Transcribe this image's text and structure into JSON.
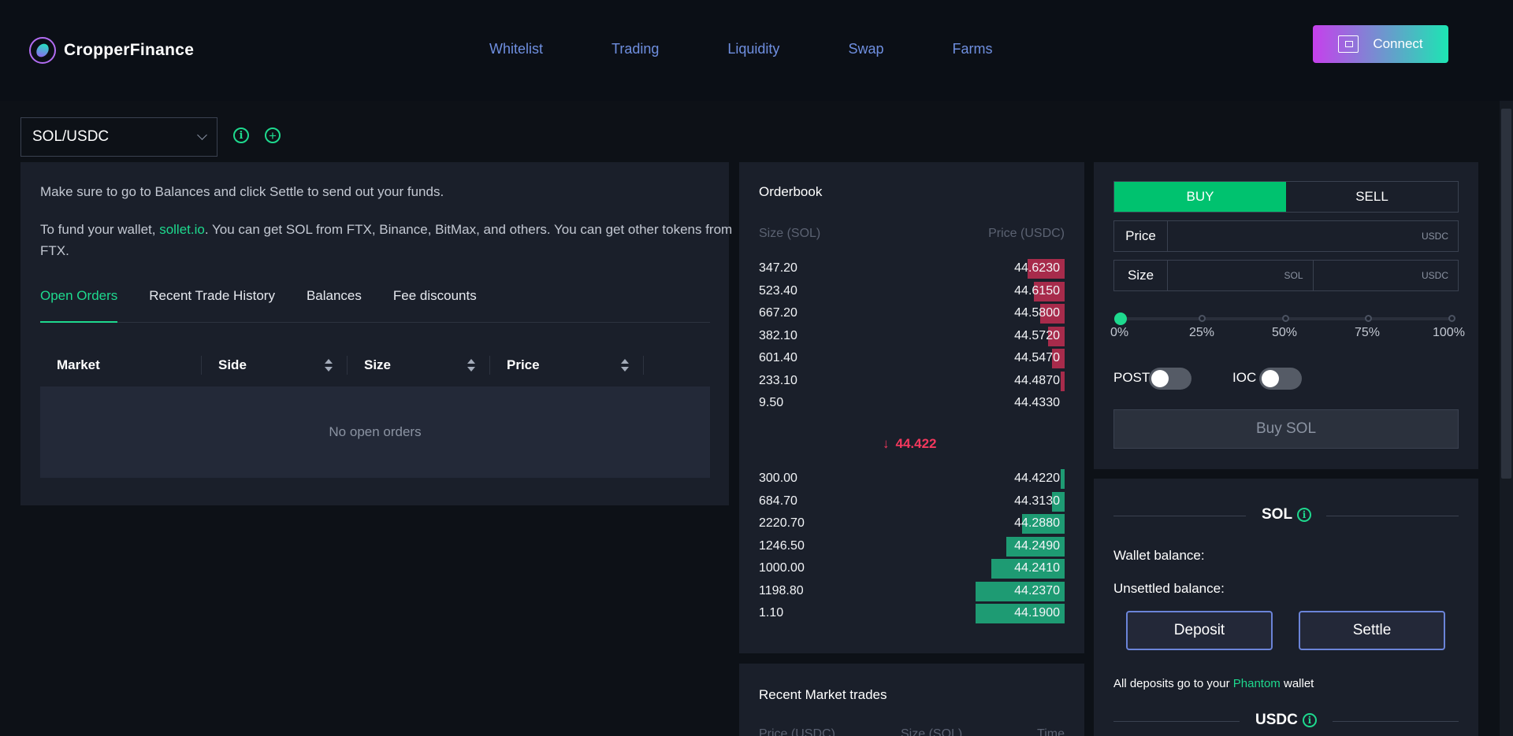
{
  "header": {
    "brand": "CropperFinance",
    "nav": [
      "Whitelist",
      "Trading",
      "Liquidity",
      "Swap",
      "Farms"
    ],
    "connect_label": "Connect"
  },
  "market": {
    "selected": "SOL/USDC"
  },
  "notice": {
    "line1": "Make sure to go to Balances and click Settle to send out your funds.",
    "line2_pre": "To fund your wallet, ",
    "line2_link": "sollet.io",
    "line2_post": ". You can get SOL from FTX, Binance, BitMax, and others. You can get other tokens from FTX."
  },
  "tabs": [
    "Open Orders",
    "Recent Trade History",
    "Balances",
    "Fee discounts"
  ],
  "orders_table": {
    "columns": [
      "Market",
      "Side",
      "Size",
      "Price"
    ],
    "empty_text": "No open orders"
  },
  "orderbook": {
    "title": "Orderbook",
    "size_header": "Size (SOL)",
    "price_header": "Price (USDC)",
    "asks": [
      {
        "size": "347.20",
        "price": "44.6230",
        "depth": 0.12
      },
      {
        "size": "523.40",
        "price": "44.6150",
        "depth": 0.1
      },
      {
        "size": "667.20",
        "price": "44.5800",
        "depth": 0.08
      },
      {
        "size": "382.10",
        "price": "44.5720",
        "depth": 0.055
      },
      {
        "size": "601.40",
        "price": "44.5470",
        "depth": 0.04
      },
      {
        "size": "233.10",
        "price": "44.4870",
        "depth": 0.012
      },
      {
        "size": "9.50",
        "price": "44.4330",
        "depth": 0
      }
    ],
    "mid_price": "44.422",
    "bids": [
      {
        "size": "300.00",
        "price": "44.4220",
        "depth": 0.012
      },
      {
        "size": "684.70",
        "price": "44.3130",
        "depth": 0.04
      },
      {
        "size": "2220.70",
        "price": "44.2880",
        "depth": 0.14
      },
      {
        "size": "1246.50",
        "price": "44.2490",
        "depth": 0.19
      },
      {
        "size": "1000.00",
        "price": "44.2410",
        "depth": 0.24
      },
      {
        "size": "1198.80",
        "price": "44.2370",
        "depth": 0.29
      },
      {
        "size": "1.10",
        "price": "44.1900",
        "depth": 0.29
      }
    ]
  },
  "recent_trades": {
    "title": "Recent Market trades",
    "columns": [
      "Price (USDC)",
      "Size (SOL)",
      "Time"
    ]
  },
  "trade_form": {
    "buy_label": "BUY",
    "sell_label": "SELL",
    "price_label": "Price",
    "price_unit": "USDC",
    "size_label": "Size",
    "size_unit_base": "SOL",
    "size_unit_quote": "USDC",
    "slider_value": 0,
    "slider_marks": [
      "0%",
      "25%",
      "50%",
      "75%",
      "100%"
    ],
    "post_label": "POST",
    "ioc_label": "IOC",
    "submit_label": "Buy SOL"
  },
  "balances": {
    "base_token": "SOL",
    "wallet_balance_label": "Wallet balance:",
    "unsettled_balance_label": "Unsettled balance:",
    "deposit_label": "Deposit",
    "settle_label": "Settle",
    "note_pre": "All deposits go to your ",
    "note_link": "Phantom",
    "note_post": " wallet",
    "quote_token": "USDC"
  },
  "colors": {
    "accent": "#1ed98e",
    "ask": "#a72b4b",
    "bid": "#1e9b73",
    "buy": "#00c26f",
    "nav": "#6f8fe0",
    "mid_price": "#f3385d"
  },
  "icons": {
    "logo": "cropper-leaf-icon",
    "wallet": "wallet-icon",
    "info": "info-icon",
    "add": "plus-circle-icon",
    "dropdown": "chevron-down-icon",
    "mid_arrow": "arrow-down-icon"
  }
}
